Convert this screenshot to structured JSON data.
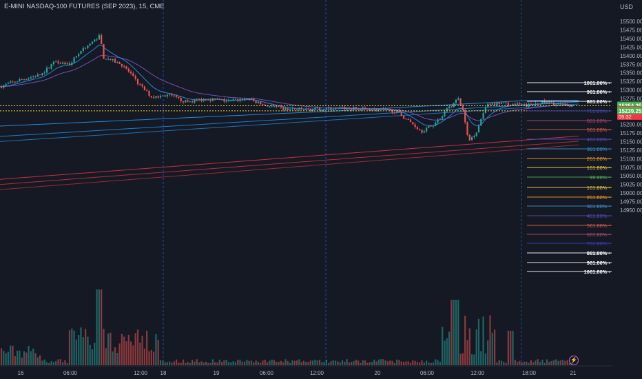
{
  "header": {
    "title": "E-MINI NASDAQ-100 FUTURES (SEP 2023), 15, CME",
    "currency": "USD"
  },
  "price_axis": {
    "ticks": [
      "15500.00",
      "15475.00",
      "15450.00",
      "15425.00",
      "15400.00",
      "15375.00",
      "15350.00",
      "15325.00",
      "15300.00",
      "15275.00",
      "15250.00",
      "15225.00",
      "15200.00",
      "15175.00",
      "15150.00",
      "15125.00",
      "15100.00",
      "15075.00",
      "15050.00",
      "15025.00",
      "15000.00",
      "14975.00",
      "14950.00"
    ],
    "badges": [
      {
        "label": "15254.25",
        "color": "#4caf50"
      },
      {
        "label": "15253.50",
        "color": "#f23645",
        "sub": "05:32"
      },
      {
        "label": "15239.25",
        "color": "#4caf50"
      }
    ]
  },
  "time_axis": {
    "labels": [
      "16",
      "06:00",
      "12:00",
      "18",
      "19",
      "06:00",
      "12:00",
      "20",
      "06:00",
      "12:00",
      "18:00",
      "21"
    ]
  },
  "fib_levels": [
    {
      "label": "1061.80%",
      "color": "#ffffff"
    },
    {
      "label": "961.80%",
      "color": "#ffffff"
    },
    {
      "label": "861.80%",
      "color": "#ffffff"
    },
    {
      "label": "761.80%",
      "color": "#3f3fb8"
    },
    {
      "label": "661.80%",
      "color": "#b24a77"
    },
    {
      "label": "561.80%",
      "color": "#e35b4e"
    },
    {
      "label": "461.80%",
      "color": "#5b4ab8"
    },
    {
      "label": "361.80%",
      "color": "#3d8fd1"
    },
    {
      "label": "261.80%",
      "color": "#f59a23"
    },
    {
      "label": "161.80%",
      "color": "#f5d142"
    },
    {
      "label": "99.98%",
      "color": "#4caf50"
    },
    {
      "label": "161.80%",
      "color": "#f5d142"
    },
    {
      "label": "261.80%",
      "color": "#f59a23"
    },
    {
      "label": "361.80%",
      "color": "#3d8fd1"
    },
    {
      "label": "461.80%",
      "color": "#5b4ab8"
    },
    {
      "label": "561.80%",
      "color": "#e35b4e"
    },
    {
      "label": "661.80%",
      "color": "#b24a77"
    },
    {
      "label": "761.80%",
      "color": "#3f3fb8"
    },
    {
      "label": "861.80%",
      "color": "#ffffff"
    },
    {
      "label": "961.80%",
      "color": "#ffffff"
    },
    {
      "label": "1061.80%",
      "color": "#ffffff"
    }
  ],
  "colors": {
    "up": "#26a69a",
    "down": "#ef5350",
    "ma_blue": "#2196f3",
    "ma_red": "#f23645"
  }
}
